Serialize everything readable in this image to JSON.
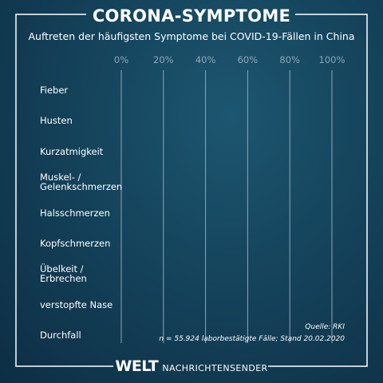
{
  "title": "CORONA-SYMPTOME",
  "chart_data": {
    "type": "bar",
    "orientation": "horizontal",
    "title": "Auftreten der häufigsten Symptome bei COVID-19-Fällen in China",
    "categories": [
      "Fieber",
      "Husten",
      "Kurzatmigkeit",
      "Muskel- /\nGelenkschmerzen",
      "Halsschmerzen",
      "Kopfschmerzen",
      "Übelkeit /\nErbrechen",
      "verstopfte Nase",
      "Durchfall"
    ],
    "xlim": [
      0,
      100
    ],
    "xticks": [
      {
        "value": 0,
        "label": "0%"
      },
      {
        "value": 20,
        "label": "20%"
      },
      {
        "value": 40,
        "label": "40%"
      },
      {
        "value": 60,
        "label": "60%"
      },
      {
        "value": 80,
        "label": "80%"
      },
      {
        "value": 100,
        "label": "100%"
      }
    ],
    "grid": true,
    "source": "Quelle: RKI",
    "note": "n = 55.924 laborbestätigte Fälle; Stand 20.02.2020"
  },
  "footer": {
    "brand": "WELT",
    "channel": "NACHRICHTENSENDER"
  }
}
